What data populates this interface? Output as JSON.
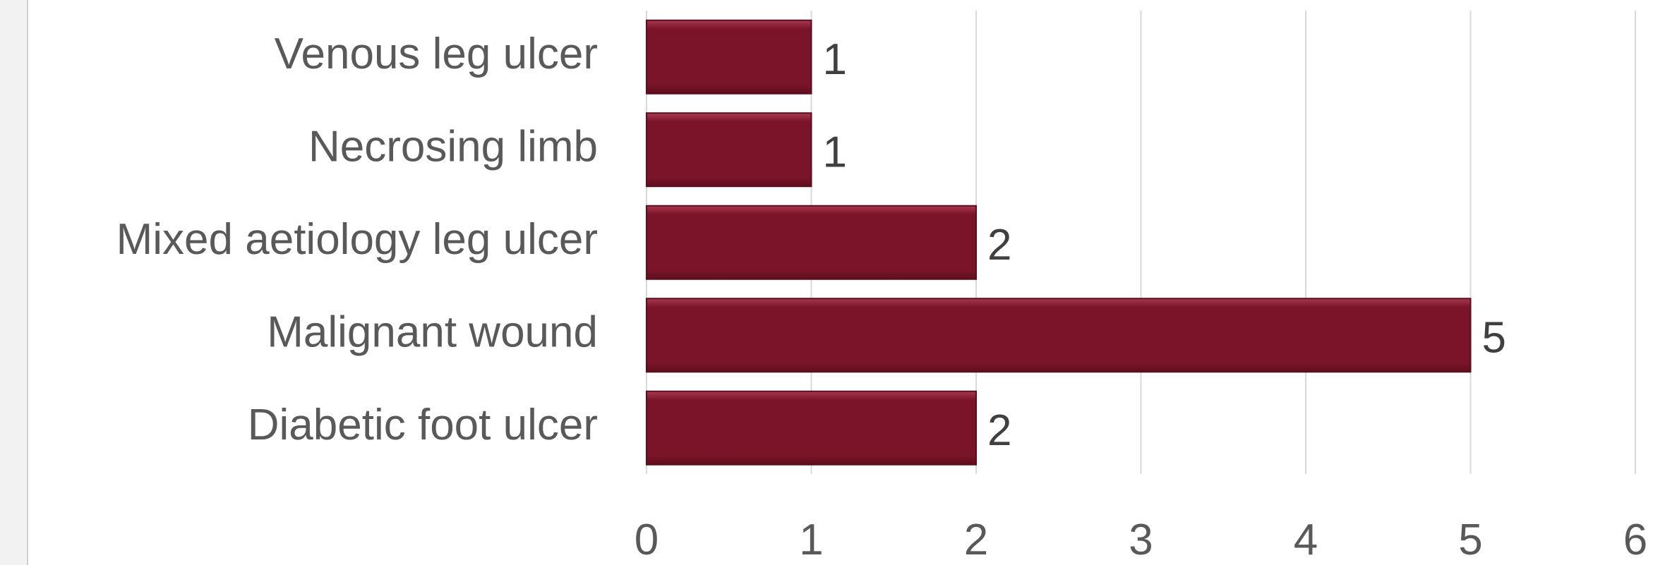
{
  "chart_data": {
    "type": "bar",
    "orientation": "horizontal",
    "categories": [
      "Venous leg ulcer",
      "Necrosing limb",
      "Mixed aetiology leg ulcer",
      "Malignant wound",
      "Diabetic foot ulcer"
    ],
    "values": [
      1,
      1,
      2,
      5,
      2
    ],
    "xlim": [
      0,
      6
    ],
    "x_ticks": [
      "0",
      "1",
      "2",
      "3",
      "4",
      "5",
      "6"
    ],
    "grid": true,
    "data_labels": true,
    "bar_color": "#7a1428",
    "bar_highlight_color": "#a8384f"
  }
}
